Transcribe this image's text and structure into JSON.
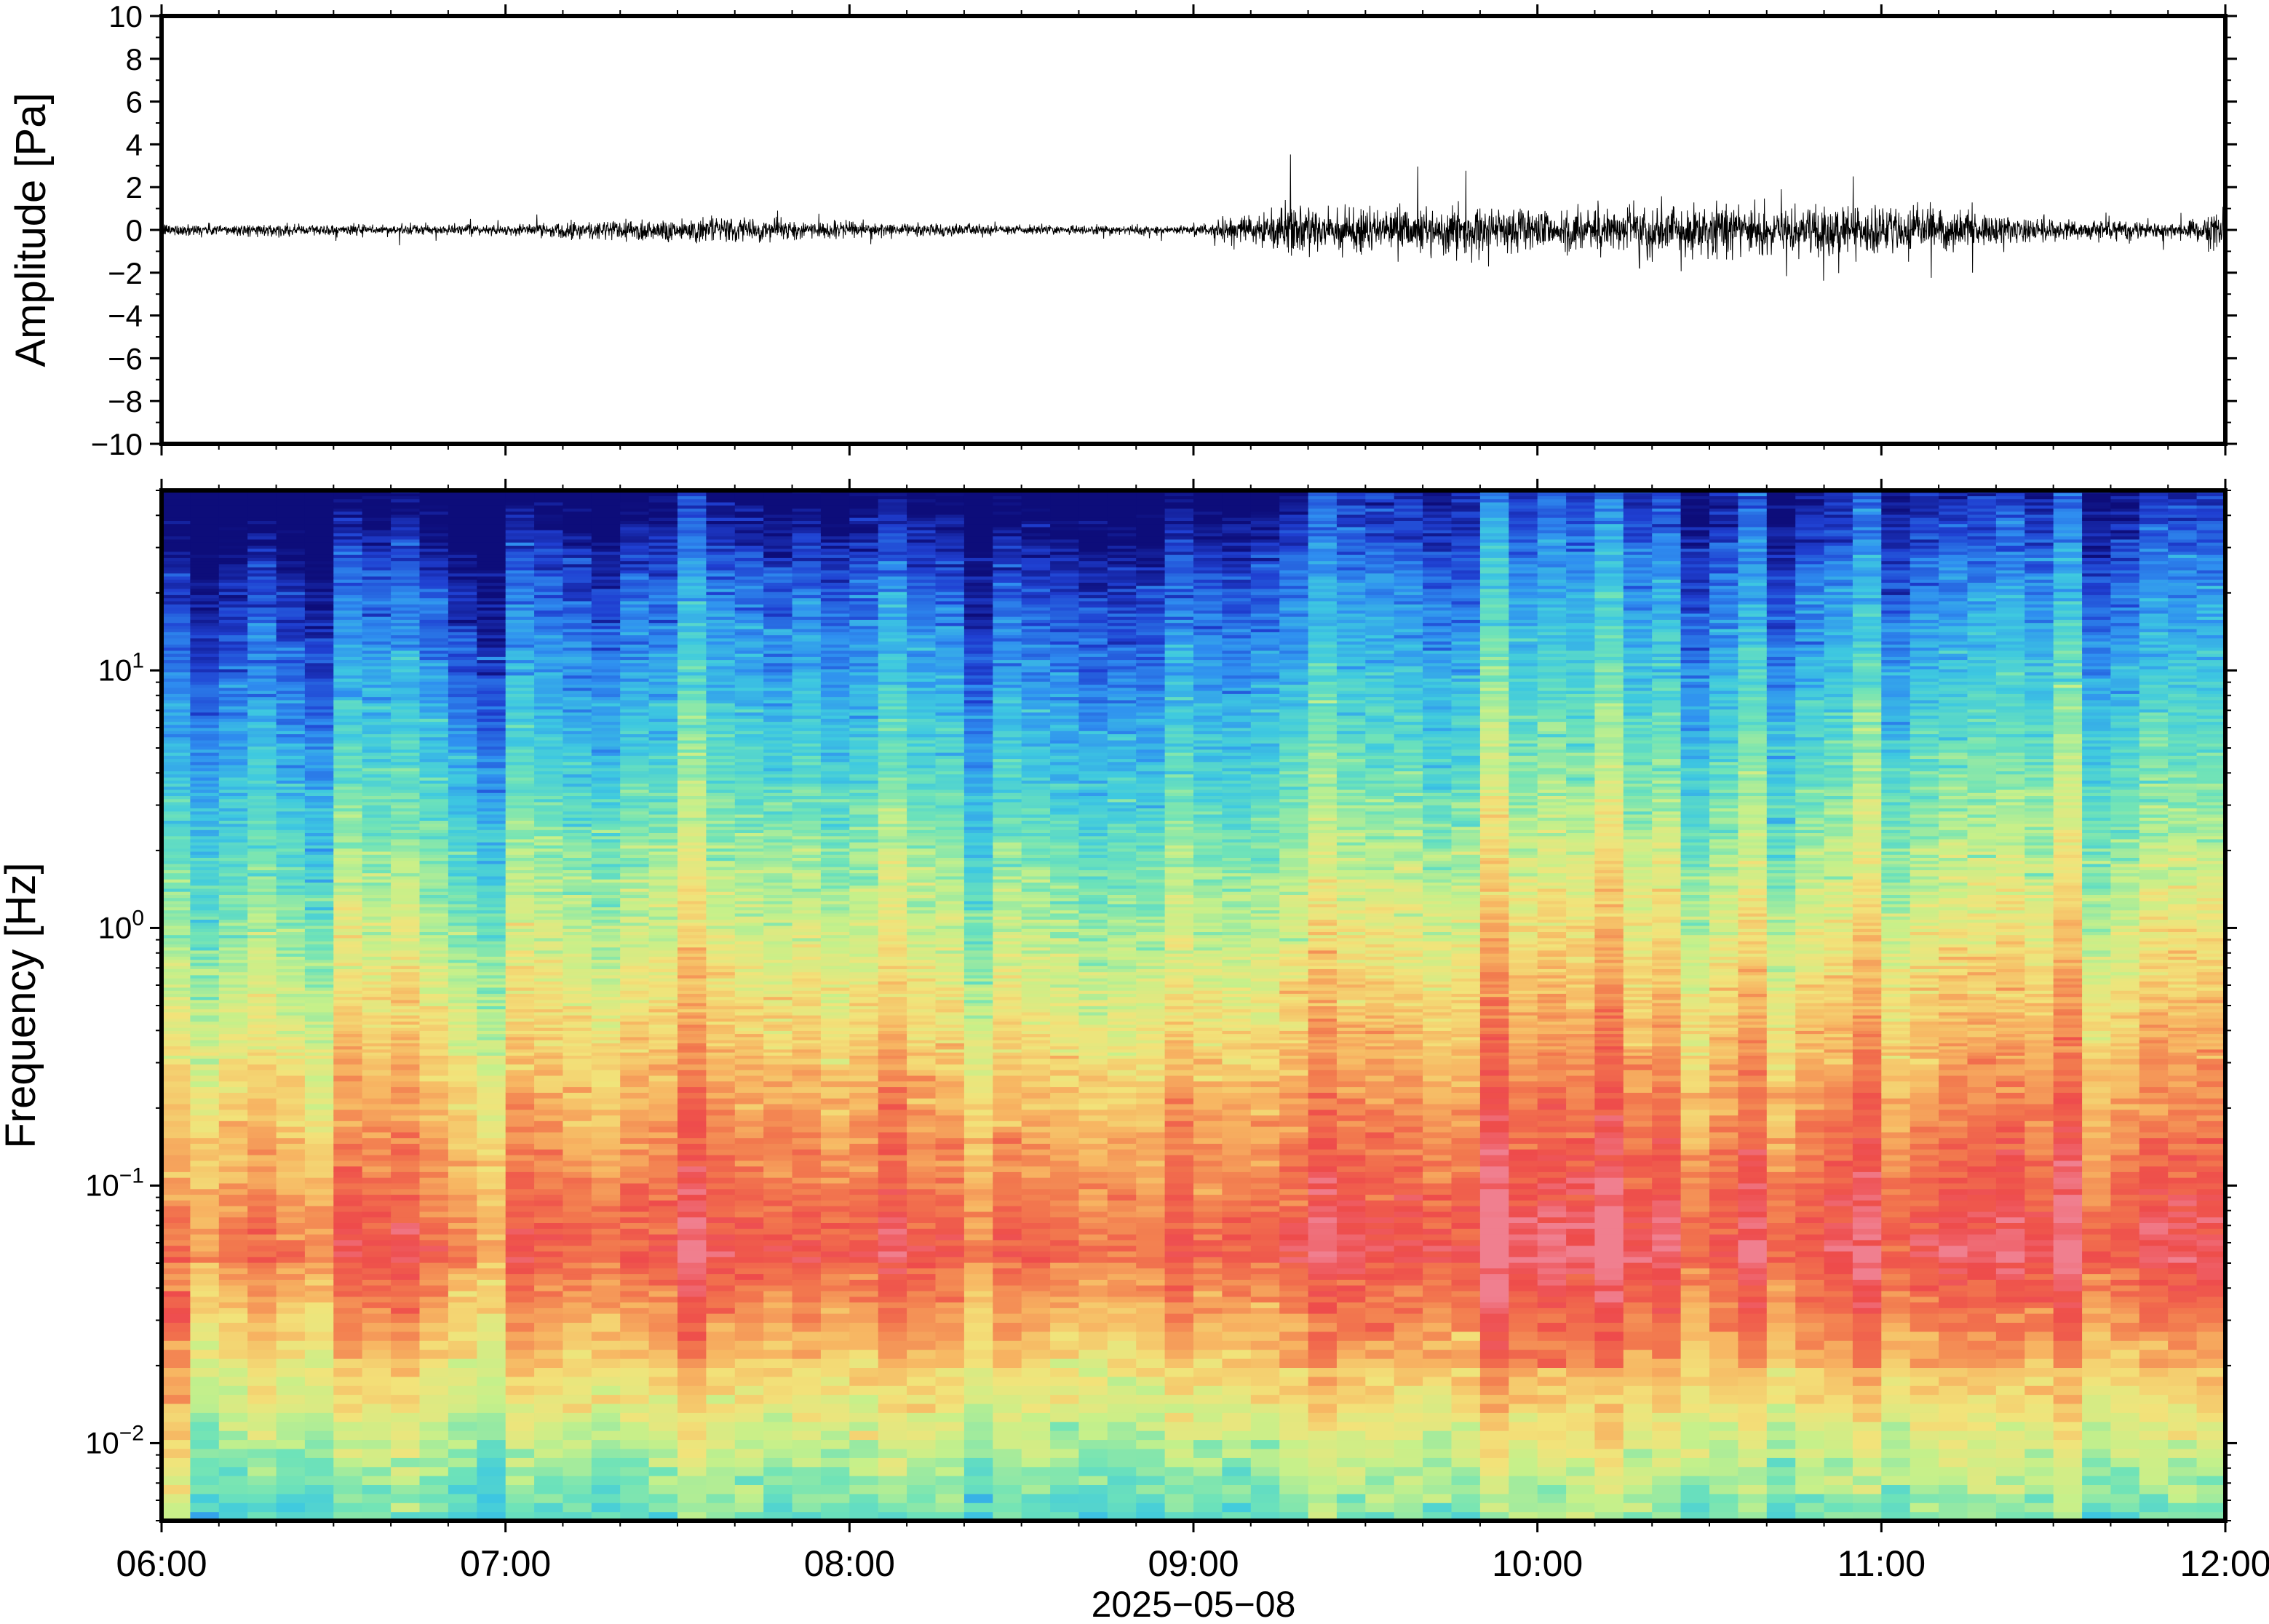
{
  "chart_data": [
    {
      "type": "line",
      "ylabel": "Amplitude [Pa]",
      "ylim": [
        -10,
        10
      ],
      "y_ticks": [
        "10",
        "8",
        "6",
        "4",
        "2",
        "0",
        "−2",
        "−4",
        "−6",
        "−8",
        "−10"
      ],
      "y_tick_values": [
        10,
        8,
        6,
        4,
        2,
        0,
        -2,
        -4,
        -6,
        -8,
        -10
      ],
      "x_ticks": [
        "06:00",
        "07:00",
        "08:00",
        "09:00",
        "10:00",
        "11:00",
        "12:00"
      ],
      "series": [
        {
          "values_description_hours": [
            6.0,
            6.5,
            7.0,
            7.3,
            7.6,
            8.0,
            8.5,
            9.0,
            9.27,
            9.5,
            10.0,
            10.5,
            11.0,
            11.5,
            11.9,
            12.0
          ],
          "envelope_pa": [
            0.4,
            0.35,
            0.3,
            0.7,
            0.8,
            0.5,
            0.3,
            0.3,
            1.4,
            1.5,
            1.4,
            1.6,
            1.6,
            0.7,
            0.5,
            1.3
          ]
        }
      ],
      "grid": false
    },
    {
      "type": "heatmap",
      "ylabel": "Frequency [Hz]",
      "yscale": "log",
      "ylim": [
        0.005,
        50
      ],
      "y_ticks": [
        {
          "base": "10",
          "exp": "−2",
          "value": 0.01
        },
        {
          "base": "10",
          "exp": "−1",
          "value": 0.1
        },
        {
          "base": "10",
          "exp": "0",
          "value": 1
        },
        {
          "base": "10",
          "exp": "1",
          "value": 10
        }
      ],
      "x_ticks": [
        "06:00",
        "07:00",
        "08:00",
        "09:00",
        "10:00",
        "11:00",
        "12:00"
      ],
      "xlabel": "2025−05−08",
      "xlim_hours": [
        6,
        12
      ],
      "colormap": [
        "#0d0d7a",
        "#1f3fd1",
        "#2f8ff0",
        "#3ec9e0",
        "#6fe3b8",
        "#c6f08a",
        "#f2e37a",
        "#f7b562",
        "#f2784e",
        "#ee4b4b",
        "#f07f8f"
      ],
      "event_onset_hours": 9.28,
      "grid": false
    }
  ]
}
